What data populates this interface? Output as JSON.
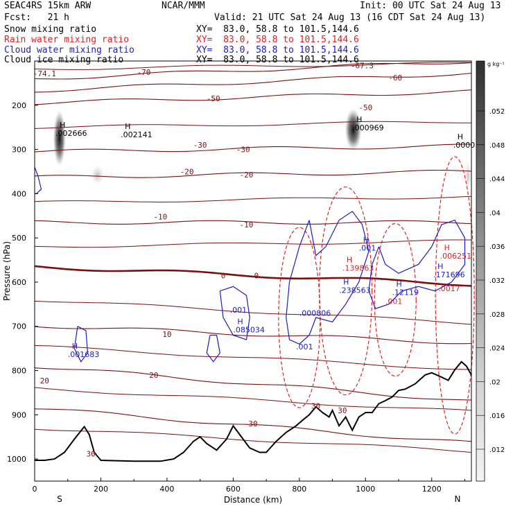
{
  "header": {
    "model": "SEAC4RS 15km ARW",
    "institution": "NCAR/MMM",
    "init": "Init: 00 UTC Sat 24 Aug 13",
    "forecast": "Fcst:   21 h",
    "valid": "Valid: 21 UTC Sat 24 Aug 13 (16 CDT Sat 24 Aug 13)"
  },
  "fields": [
    {
      "name": "Snow mixing ratio",
      "xy": "XY=  83.0, 58.8 to 101.5,144.6",
      "color": "#000000"
    },
    {
      "name": "Rain water mixing ratio",
      "xy": "XY=  83.0, 58.8 to 101.5,144.6",
      "color": "#e0201e"
    },
    {
      "name": "Cloud water mixing ratio",
      "xy": "XY=  83.0, 58.8 to 101.5,144.6",
      "color": "#1a1ac8"
    },
    {
      "name": "Cloud ice mixing ratio",
      "xy": "XY=  83.0, 58.8 to 101.5,144.6",
      "color": "#000000"
    }
  ],
  "colors": {
    "temperature": "#7a1010",
    "rain": "#e0201e",
    "cloud_water": "#1a1ac8",
    "terrain": "#000000"
  },
  "chart_data": {
    "type": "cross-section contour",
    "xlabel": "Distance (km)",
    "ylabel": "Pressure (hPa)",
    "xlim": [
      0,
      1320
    ],
    "ylim": [
      1050,
      100
    ],
    "x_ticks": [
      0,
      200,
      400,
      600,
      800,
      1000,
      1200
    ],
    "y_ticks": [
      200,
      300,
      400,
      500,
      600,
      700,
      800,
      900,
      1000
    ],
    "endpoints": {
      "left": "S",
      "right": "N"
    },
    "colorbar": {
      "unit": "g kg⁻¹",
      "ticks": [
        ".052",
        ".048",
        ".044",
        ".04",
        ".036",
        ".032",
        ".028",
        ".024",
        ".02",
        ".016",
        ".012"
      ],
      "values": [
        0.052,
        0.048,
        0.044,
        0.04,
        0.036,
        0.032,
        0.028,
        0.024,
        0.02,
        0.016,
        0.012
      ]
    },
    "isotherms": [
      {
        "temp": -70,
        "label": "-70",
        "label_x": 330,
        "base_p": 140,
        "slope": -0.03
      },
      {
        "temp": -60,
        "label": "-60",
        "label_x": 1090,
        "base_p": 167,
        "slope": -0.03
      },
      {
        "temp": -50,
        "label": "-50",
        "label_x": 540,
        "base_p": 195,
        "slope": -0.02
      },
      {
        "temp": -30,
        "label": "-30",
        "label_x": 500,
        "base_p": 305,
        "slope": -0.01
      },
      {
        "temp": -20,
        "label": "-20",
        "label_x": 460,
        "base_p": 363,
        "slope": -0.01
      },
      {
        "temp": -10,
        "label": "-10",
        "label_x": 380,
        "base_p": 465,
        "slope": 0.0
      },
      {
        "temp": 0,
        "label": "0",
        "label_x": 600,
        "base_p": 565,
        "slope": 0.03
      },
      {
        "temp": 10,
        "label": "10",
        "label_x": 400,
        "base_p": 698,
        "slope": 0.03
      },
      {
        "temp": 20,
        "label": "20",
        "label_x": 360,
        "base_p": 790,
        "slope": 0.06
      },
      {
        "temp": 30,
        "label": "30",
        "label_x": 660,
        "base_p": 885,
        "slope": 0.06
      }
    ],
    "temperature_labels": [
      {
        "text": "-74.1",
        "x": 30,
        "p": 128
      },
      {
        "text": "-67.3",
        "x": 990,
        "p": 110
      },
      {
        "text": "-70",
        "x": 330,
        "p": 125
      },
      {
        "text": "-60",
        "x": 1090,
        "p": 138
      },
      {
        "text": "-50",
        "x": 540,
        "p": 185
      },
      {
        "text": "-50",
        "x": 1000,
        "p": 205
      },
      {
        "text": "-30",
        "x": 500,
        "p": 290
      },
      {
        "text": "-30",
        "x": 630,
        "p": 300
      },
      {
        "text": "-20",
        "x": 460,
        "p": 350
      },
      {
        "text": "-20",
        "x": 640,
        "p": 357
      },
      {
        "text": "-10",
        "x": 380,
        "p": 452
      },
      {
        "text": "-10",
        "x": 640,
        "p": 470
      },
      {
        "text": "0",
        "x": 570,
        "p": 585
      },
      {
        "text": "0",
        "x": 670,
        "p": 585
      },
      {
        "text": "10",
        "x": 400,
        "p": 718
      },
      {
        "text": "20",
        "x": 360,
        "p": 810
      },
      {
        "text": "20",
        "x": 30,
        "p": 823
      },
      {
        "text": "30",
        "x": 660,
        "p": 920
      },
      {
        "text": "30",
        "x": 850,
        "p": 880
      },
      {
        "text": "30",
        "x": 930,
        "p": 890
      },
      {
        "text": "30",
        "x": 170,
        "p": 988
      }
    ],
    "extrema": [
      {
        "mark": "H",
        "value": ".002666",
        "x": 63,
        "p": 255,
        "color": "#000000"
      },
      {
        "mark": "H",
        "value": ".002141",
        "x": 260,
        "p": 258,
        "color": "#000000"
      },
      {
        "mark": "H",
        "value": ".000969",
        "x": 960,
        "p": 243,
        "color": "#000000"
      },
      {
        "mark": "H",
        "value": ".0000",
        "x": 1265,
        "p": 282,
        "color": "#000000"
      },
      {
        "mark": "H",
        "value": ".001",
        "x": 980,
        "p": 515,
        "color": "#1a1ac8"
      },
      {
        "mark": "H",
        "value": ".139863",
        "x": 930,
        "p": 560,
        "color": "#e0201e"
      },
      {
        "mark": "H",
        "value": ".238563",
        "x": 920,
        "p": 610,
        "color": "#1a1ac8"
      },
      {
        "mark": "H",
        "value": ".12119",
        "x": 1080,
        "p": 615,
        "color": "#1a1ac8"
      },
      {
        "mark": "H",
        "value": ".006251",
        "x": 1225,
        "p": 533,
        "color": "#e0201e"
      },
      {
        "mark": "H",
        "value": ".171696",
        "x": 1205,
        "p": 575,
        "color": "#1a1ac8"
      },
      {
        "mark": "",
        "value": ".0017",
        "x": 1220,
        "p": 606,
        "color": "#e0201e"
      },
      {
        "mark": "",
        "value": ".001",
        "x": 1060,
        "p": 635,
        "color": "#e0201e"
      },
      {
        "mark": "",
        "value": ".001",
        "x": 590,
        "p": 655,
        "color": "#1a1ac8"
      },
      {
        "mark": "",
        "value": ".000806",
        "x": 800,
        "p": 662,
        "color": "#1a1ac8"
      },
      {
        "mark": "H",
        "value": ".085034",
        "x": 600,
        "p": 700,
        "color": "#1a1ac8"
      },
      {
        "mark": "",
        "value": ".001",
        "x": 790,
        "p": 738,
        "color": "#1a1ac8"
      },
      {
        "mark": "H",
        "value": ".001683",
        "x": 100,
        "p": 755,
        "color": "#1a1ac8"
      }
    ],
    "terrain": [
      [
        0,
        1003
      ],
      [
        30,
        1003
      ],
      [
        60,
        1000
      ],
      [
        90,
        985
      ],
      [
        120,
        955
      ],
      [
        150,
        927
      ],
      [
        165,
        945
      ],
      [
        180,
        985
      ],
      [
        200,
        1003
      ],
      [
        300,
        1005
      ],
      [
        380,
        1005
      ],
      [
        420,
        1000
      ],
      [
        450,
        985
      ],
      [
        480,
        960
      ],
      [
        500,
        950
      ],
      [
        520,
        965
      ],
      [
        550,
        980
      ],
      [
        580,
        955
      ],
      [
        600,
        925
      ],
      [
        620,
        945
      ],
      [
        650,
        975
      ],
      [
        680,
        985
      ],
      [
        700,
        985
      ],
      [
        730,
        960
      ],
      [
        760,
        940
      ],
      [
        790,
        925
      ],
      [
        810,
        912
      ],
      [
        830,
        900
      ],
      [
        850,
        882
      ],
      [
        870,
        895
      ],
      [
        890,
        905
      ],
      [
        900,
        890
      ],
      [
        920,
        925
      ],
      [
        940,
        905
      ],
      [
        960,
        935
      ],
      [
        980,
        905
      ],
      [
        1000,
        895
      ],
      [
        1020,
        895
      ],
      [
        1040,
        875
      ],
      [
        1060,
        868
      ],
      [
        1080,
        860
      ],
      [
        1100,
        845
      ],
      [
        1120,
        842
      ],
      [
        1150,
        830
      ],
      [
        1180,
        810
      ],
      [
        1200,
        805
      ],
      [
        1230,
        815
      ],
      [
        1250,
        822
      ],
      [
        1270,
        798
      ],
      [
        1290,
        780
      ],
      [
        1305,
        790
      ],
      [
        1320,
        810
      ]
    ]
  }
}
